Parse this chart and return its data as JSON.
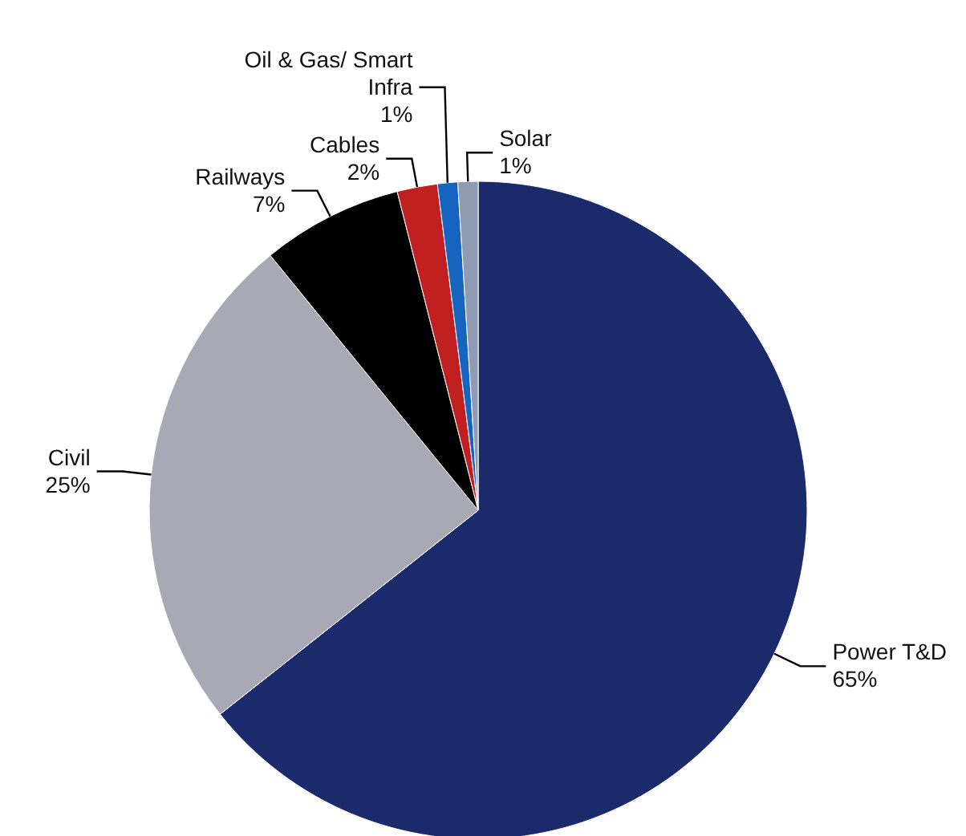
{
  "chart_data": {
    "type": "pie",
    "categories": [
      "Power T&D",
      "Civil",
      "Railways",
      "Cables",
      "Oil & Gas/ Smart Infra",
      "Solar"
    ],
    "values": [
      65,
      25,
      7,
      2,
      1,
      1
    ],
    "colors": [
      "#1b2a6b",
      "#a9a9b5",
      "#000000",
      "#c0201f",
      "#1565c0",
      "#8e9bb0"
    ],
    "value_labels": [
      "65%",
      "25%",
      "7%",
      "2%",
      "1%",
      "1%"
    ]
  }
}
